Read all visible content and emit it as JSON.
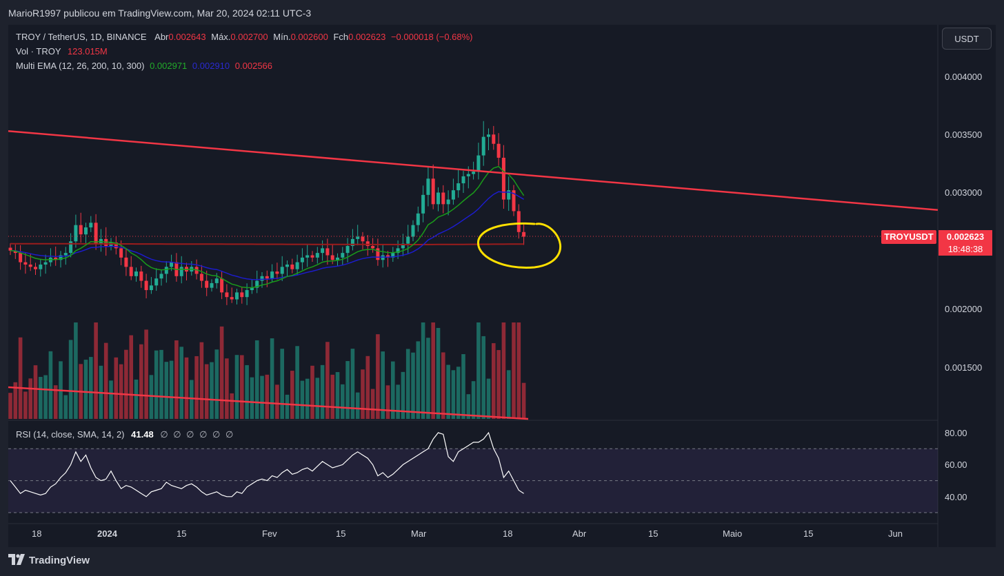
{
  "header": {
    "credit": "MarioR1997 publicou em TradingView.com, Mar 20, 2024 02:11 UTC-3"
  },
  "legend": {
    "symbol": "TROY / TetherUS, 1D, BINANCE",
    "open_label": "Abr",
    "open_value": "0.002643",
    "high_label": "Máx.",
    "high_value": "0.002700",
    "low_label": "Mín.",
    "low_value": "0.002600",
    "close_label": "Fch",
    "close_value": "0.002623",
    "change": "−0.000018 (−0.68%)",
    "vol_label": "Vol · TROY",
    "vol_value": "123.015M",
    "ema_label": "Multi EMA (12, 26, 200, 10, 300)",
    "ema1": "0.002971",
    "ema2": "0.002910",
    "ema3": "0.002566",
    "rsi_label": "RSI (14, close, SMA, 14, 2)",
    "rsi_value": "41.48",
    "rsi_extra": "∅ ∅ ∅ ∅ ∅ ∅"
  },
  "controls": {
    "currency_button": "USDT"
  },
  "price_marker": {
    "symbol": "TROYUSDT",
    "price": "0.002623",
    "countdown": "18:48:38"
  },
  "colors": {
    "up": "#22ab94",
    "down": "#f23645",
    "ema_fast": "#1a9b1a",
    "ema_mid": "#1c1ccc",
    "ema_slow": "#9c1c1c",
    "trendline": "#f23645",
    "annotation": "#ffe000",
    "rsi_line": "#ffffff"
  },
  "chart_data": {
    "type": "candlestick",
    "y_ticks": [
      "0.004000",
      "0.003500",
      "0.003000",
      "0.002000",
      "0.001500"
    ],
    "x_ticks": [
      {
        "label": "18",
        "bold": false
      },
      {
        "label": "2024",
        "bold": true
      },
      {
        "label": "15",
        "bold": false
      },
      {
        "label": "Fev",
        "bold": false
      },
      {
        "label": "15",
        "bold": false
      },
      {
        "label": "Mar",
        "bold": false
      },
      {
        "label": "18",
        "bold": false
      },
      {
        "label": "Abr",
        "bold": false
      },
      {
        "label": "15",
        "bold": false
      },
      {
        "label": "Maio",
        "bold": false
      },
      {
        "label": "15",
        "bold": false
      },
      {
        "label": "Jun",
        "bold": false
      }
    ],
    "rsi_ticks": [
      "80.00",
      "60.00",
      "40.00"
    ],
    "rsi_bands": [
      70,
      50,
      30
    ],
    "last_close": 0.002623,
    "trendline_price": {
      "from": {
        "date": "2023-12-14",
        "price": 0.00353
      },
      "to": {
        "date": "2024-06-07",
        "price": 0.00285
      }
    },
    "trendline_volume": "descending",
    "candles_close": [
      0.0025,
      0.00248,
      0.0024,
      0.00238,
      0.00236,
      0.00234,
      0.00238,
      0.0024,
      0.00244,
      0.00242,
      0.00246,
      0.00248,
      0.00258,
      0.00272,
      0.00264,
      0.0027,
      0.00274,
      0.00256,
      0.0026,
      0.00254,
      0.00257,
      0.00252,
      0.00244,
      0.00236,
      0.00228,
      0.00232,
      0.00224,
      0.00216,
      0.0022,
      0.00226,
      0.0023,
      0.00236,
      0.0024,
      0.00228,
      0.00236,
      0.00232,
      0.00236,
      0.0023,
      0.00224,
      0.00218,
      0.00222,
      0.00226,
      0.00214,
      0.0021,
      0.00208,
      0.00214,
      0.0021,
      0.00216,
      0.00218,
      0.00224,
      0.00228,
      0.00226,
      0.00232,
      0.0023,
      0.00236,
      0.00238,
      0.00234,
      0.0024,
      0.00244,
      0.00246,
      0.00244,
      0.00248,
      0.00252,
      0.00246,
      0.00242,
      0.00244,
      0.00248,
      0.00254,
      0.0026,
      0.00262,
      0.00258,
      0.00254,
      0.00252,
      0.00242,
      0.00246,
      0.00244,
      0.00248,
      0.00252,
      0.00256,
      0.00262,
      0.00272,
      0.00282,
      0.00298,
      0.00312,
      0.0029,
      0.003,
      0.0029,
      0.00294,
      0.00302,
      0.00308,
      0.00314,
      0.00316,
      0.00318,
      0.00332,
      0.00348,
      0.0035,
      0.00342,
      0.0033,
      0.00294,
      0.00302,
      0.00284,
      0.00266,
      0.00262
    ],
    "rsi_values": [
      50,
      46,
      42,
      44,
      43,
      42,
      41,
      42,
      46,
      48,
      52,
      55,
      60,
      68,
      62,
      66,
      58,
      52,
      50,
      51,
      56,
      50,
      45,
      47,
      46,
      44,
      42,
      40,
      43,
      44,
      45,
      49,
      47,
      46,
      45,
      47,
      48,
      46,
      43,
      41,
      42,
      43,
      41,
      40,
      40,
      43,
      42,
      46,
      48,
      50,
      51,
      50,
      53,
      52,
      55,
      57,
      54,
      55,
      57,
      58,
      56,
      59,
      62,
      60,
      58,
      59,
      60,
      63,
      66,
      68,
      66,
      64,
      60,
      53,
      55,
      52,
      54,
      57,
      60,
      62,
      64,
      66,
      68,
      70,
      76,
      80,
      79,
      65,
      62,
      68,
      70,
      72,
      74,
      74,
      76,
      80,
      70,
      64,
      52,
      56,
      50,
      44,
      42
    ]
  }
}
